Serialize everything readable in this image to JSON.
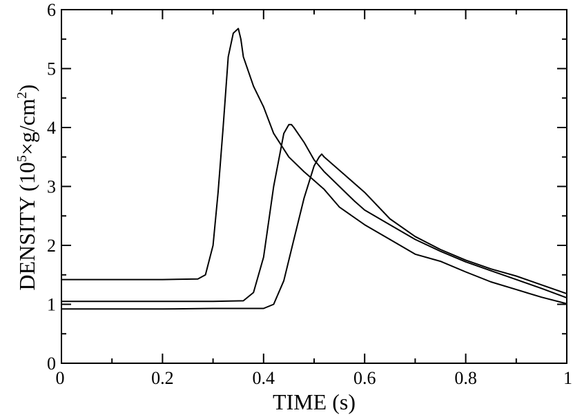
{
  "chart_data": {
    "type": "line",
    "title": "",
    "xlabel": "TIME (s)",
    "ylabel": {
      "main": "DENSITY (10",
      "exp": "5",
      "mid": "×g/cm",
      "exp2": "2",
      "end": ")"
    },
    "xlim": [
      0,
      1
    ],
    "ylim": [
      0,
      6
    ],
    "grid": false,
    "legend": "none",
    "x_ticks": [
      "0",
      "0.2",
      "0.4",
      "0.6",
      "0.8",
      "1"
    ],
    "y_ticks": [
      "0",
      "1",
      "2",
      "3",
      "4",
      "5",
      "6"
    ],
    "series": [
      {
        "x": [
          0,
          0.1,
          0.2,
          0.27,
          0.285,
          0.3,
          0.31,
          0.32,
          0.33,
          0.34,
          0.35,
          0.355,
          0.36,
          0.38,
          0.4,
          0.42,
          0.45,
          0.48,
          0.5,
          0.52,
          0.55,
          0.6,
          0.65,
          0.7,
          0.75,
          0.8,
          0.85,
          0.9,
          0.95,
          1.0
        ],
        "y": [
          1.42,
          1.42,
          1.42,
          1.43,
          1.5,
          2.0,
          2.9,
          4.0,
          5.2,
          5.6,
          5.68,
          5.5,
          5.2,
          4.7,
          4.35,
          3.9,
          3.5,
          3.25,
          3.1,
          2.95,
          2.65,
          2.35,
          2.1,
          1.85,
          1.73,
          1.55,
          1.38,
          1.25,
          1.12,
          1.01
        ]
      },
      {
        "x": [
          0,
          0.1,
          0.2,
          0.3,
          0.36,
          0.38,
          0.4,
          0.42,
          0.44,
          0.45,
          0.455,
          0.46,
          0.48,
          0.5,
          0.52,
          0.55,
          0.58,
          0.6,
          0.65,
          0.7,
          0.75,
          0.8,
          0.85,
          0.9,
          0.95,
          1.0
        ],
        "y": [
          1.05,
          1.05,
          1.05,
          1.05,
          1.06,
          1.2,
          1.8,
          3.0,
          3.9,
          4.05,
          4.05,
          4.0,
          3.75,
          3.45,
          3.25,
          3.0,
          2.75,
          2.6,
          2.35,
          2.1,
          1.9,
          1.72,
          1.57,
          1.42,
          1.27,
          1.11
        ]
      },
      {
        "x": [
          0,
          0.1,
          0.2,
          0.3,
          0.4,
          0.42,
          0.44,
          0.46,
          0.48,
          0.5,
          0.51,
          0.515,
          0.52,
          0.54,
          0.56,
          0.6,
          0.65,
          0.7,
          0.75,
          0.8,
          0.85,
          0.9,
          0.95,
          1.0
        ],
        "y": [
          0.92,
          0.92,
          0.92,
          0.93,
          0.93,
          1.0,
          1.4,
          2.1,
          2.8,
          3.35,
          3.5,
          3.55,
          3.5,
          3.35,
          3.2,
          2.9,
          2.45,
          2.15,
          1.93,
          1.75,
          1.6,
          1.48,
          1.33,
          1.18
        ]
      }
    ]
  }
}
